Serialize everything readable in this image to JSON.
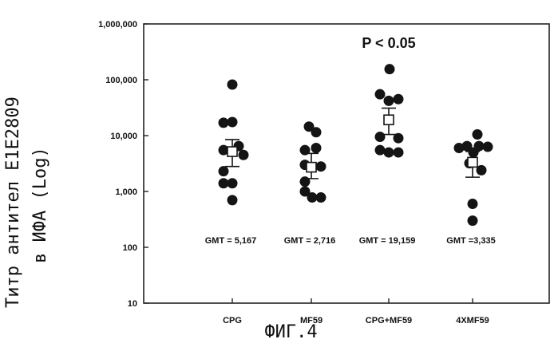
{
  "figure": {
    "ylabel_line1": "Титр антител E1E2809",
    "ylabel_line2": "в ИФА (Log)",
    "caption": "ФИГ.4"
  },
  "chart_data": {
    "type": "scatter",
    "title": "P < 0.05",
    "xlabel": "",
    "ylabel": "Титр антител E1E2809 в ИФА (Log)",
    "yscale": "log",
    "ylim": [
      10,
      1000000
    ],
    "ytick_values": [
      10,
      100,
      1000,
      10000,
      100000,
      1000000
    ],
    "ytick_labels": [
      "10",
      "100",
      "1,000",
      "10,000",
      "100,000",
      "1,000,000"
    ],
    "categories": [
      "CPG",
      "MF59",
      "CPG+MF59",
      "4XMF59"
    ],
    "groups": [
      {
        "name": "CPG",
        "gmt_label": "GMT = 5,167",
        "gmt": 5167,
        "ci": [
          2800,
          8500
        ],
        "points": [
          {
            "offset": 0.0,
            "y": 82000
          },
          {
            "offset": -0.55,
            "y": 17000
          },
          {
            "offset": 0.0,
            "y": 17500
          },
          {
            "offset": -0.55,
            "y": 5500
          },
          {
            "offset": 0.4,
            "y": 6500
          },
          {
            "offset": 0.7,
            "y": 4500
          },
          {
            "offset": -0.55,
            "y": 2300
          },
          {
            "offset": -0.55,
            "y": 1400
          },
          {
            "offset": 0.0,
            "y": 1400
          },
          {
            "offset": 0.0,
            "y": 700
          }
        ]
      },
      {
        "name": "MF59",
        "gmt_label": "GMT = 2,716",
        "gmt": 2716,
        "ci": [
          1700,
          4800
        ],
        "points": [
          {
            "offset": -0.15,
            "y": 14500
          },
          {
            "offset": 0.3,
            "y": 11500
          },
          {
            "offset": -0.4,
            "y": 5500
          },
          {
            "offset": 0.3,
            "y": 6000
          },
          {
            "offset": -0.4,
            "y": 3000
          },
          {
            "offset": 0.6,
            "y": 2800
          },
          {
            "offset": -0.4,
            "y": 1500
          },
          {
            "offset": -0.4,
            "y": 1000
          },
          {
            "offset": 0.05,
            "y": 780
          },
          {
            "offset": 0.6,
            "y": 780
          }
        ]
      },
      {
        "name": "CPG+MF59",
        "gmt_label": "GMT = 19,159",
        "gmt": 19159,
        "ci": [
          10500,
          31000
        ],
        "points": [
          {
            "offset": 0.05,
            "y": 155000
          },
          {
            "offset": -0.55,
            "y": 55000
          },
          {
            "offset": 0.0,
            "y": 42000
          },
          {
            "offset": 0.6,
            "y": 45000
          },
          {
            "offset": -0.55,
            "y": 9500
          },
          {
            "offset": 0.6,
            "y": 9000
          },
          {
            "offset": -0.55,
            "y": 5500
          },
          {
            "offset": 0.0,
            "y": 5000
          },
          {
            "offset": 0.6,
            "y": 5000
          }
        ]
      },
      {
        "name": "4XMF59",
        "gmt_label": "GMT =3,335",
        "gmt": 3335,
        "ci": [
          1800,
          5200
        ],
        "points": [
          {
            "offset": 0.3,
            "y": 10500
          },
          {
            "offset": -0.85,
            "y": 6000
          },
          {
            "offset": -0.35,
            "y": 6500
          },
          {
            "offset": 0.4,
            "y": 6500
          },
          {
            "offset": 0.95,
            "y": 6300
          },
          {
            "offset": 0.05,
            "y": 5000
          },
          {
            "offset": -0.2,
            "y": 3200
          },
          {
            "offset": 0.55,
            "y": 2400
          },
          {
            "offset": 0.0,
            "y": 600
          },
          {
            "offset": 0.0,
            "y": 300
          }
        ]
      }
    ]
  }
}
